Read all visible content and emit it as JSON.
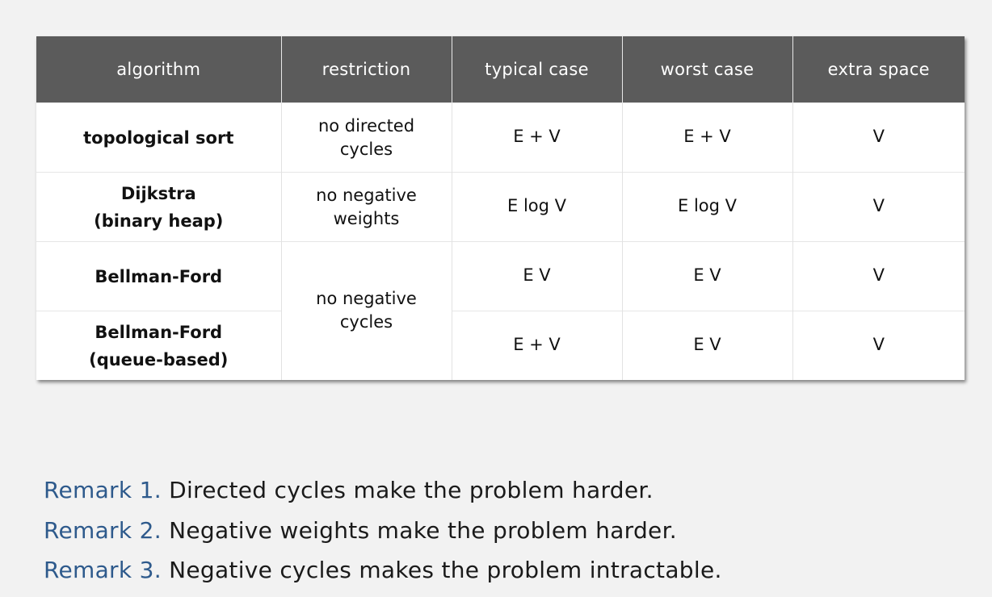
{
  "table": {
    "headers": [
      "algorithm",
      "restriction",
      "typical case",
      "worst case",
      "extra space"
    ],
    "rows": [
      {
        "algorithm": [
          "topological sort"
        ],
        "restriction": [
          "no directed",
          "cycles"
        ],
        "typical": "E + V",
        "worst": "E + V",
        "space": "V"
      },
      {
        "algorithm": [
          "Dijkstra",
          "(binary heap)"
        ],
        "restriction": [
          "no negative",
          "weights"
        ],
        "typical": "E log V",
        "worst": "E log V",
        "space": "V"
      },
      {
        "algorithm": [
          "Bellman-Ford"
        ],
        "restriction": [
          "no negative",
          "cycles"
        ],
        "typical": "E V",
        "worst": "E V",
        "space": "V"
      },
      {
        "algorithm": [
          "Bellman-Ford",
          "(queue-based)"
        ],
        "typical": "E + V",
        "worst": "E V",
        "space": "V"
      }
    ]
  },
  "remarks": [
    {
      "label": "Remark 1.",
      "text": "Directed cycles make the problem harder."
    },
    {
      "label": "Remark 2.",
      "text": "Negative weights make the problem harder."
    },
    {
      "label": "Remark 3.",
      "text": "Negative cycles makes the problem intractable."
    }
  ],
  "colors": {
    "header_bg": "#5b5b5b",
    "page_bg": "#f2f2f2",
    "remark_label": "#2e5a8c"
  }
}
